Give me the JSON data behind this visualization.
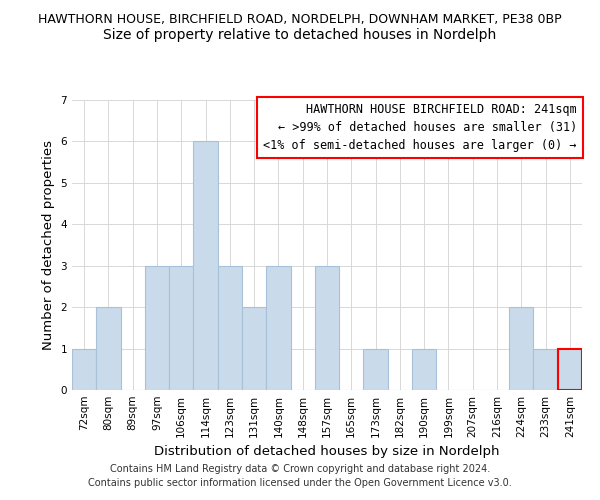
{
  "title_line1": "HAWTHORN HOUSE, BIRCHFIELD ROAD, NORDELPH, DOWNHAM MARKET, PE38 0BP",
  "title_line2": "Size of property relative to detached houses in Nordelph",
  "xlabel": "Distribution of detached houses by size in Nordelph",
  "ylabel": "Number of detached properties",
  "bin_labels": [
    "72sqm",
    "80sqm",
    "89sqm",
    "97sqm",
    "106sqm",
    "114sqm",
    "123sqm",
    "131sqm",
    "140sqm",
    "148sqm",
    "157sqm",
    "165sqm",
    "173sqm",
    "182sqm",
    "190sqm",
    "199sqm",
    "207sqm",
    "216sqm",
    "224sqm",
    "233sqm",
    "241sqm"
  ],
  "bar_heights": [
    1,
    2,
    0,
    3,
    3,
    6,
    3,
    2,
    3,
    0,
    3,
    0,
    1,
    0,
    1,
    0,
    0,
    0,
    2,
    1,
    1
  ],
  "bar_color": "#c9daea",
  "bar_edge_color": "#a8c0d8",
  "highlight_bar_index": 20,
  "ylim": [
    0,
    7
  ],
  "yticks": [
    0,
    1,
    2,
    3,
    4,
    5,
    6,
    7
  ],
  "legend_title": "HAWTHORN HOUSE BIRCHFIELD ROAD: 241sqm",
  "legend_line1": "← >99% of detached houses are smaller (31)",
  "legend_line2": "<1% of semi-detached houses are larger (0) →",
  "legend_box_color": "white",
  "legend_box_edge_color": "red",
  "footer_line1": "Contains HM Land Registry data © Crown copyright and database right 2024.",
  "footer_line2": "Contains public sector information licensed under the Open Government Licence v3.0.",
  "grid_color": "#d8d8d8",
  "background_color": "white",
  "title_fontsize": 9.0,
  "subtitle_fontsize": 10,
  "axis_label_fontsize": 9.5,
  "tick_fontsize": 7.5,
  "legend_fontsize": 8.5,
  "footer_fontsize": 7.0
}
